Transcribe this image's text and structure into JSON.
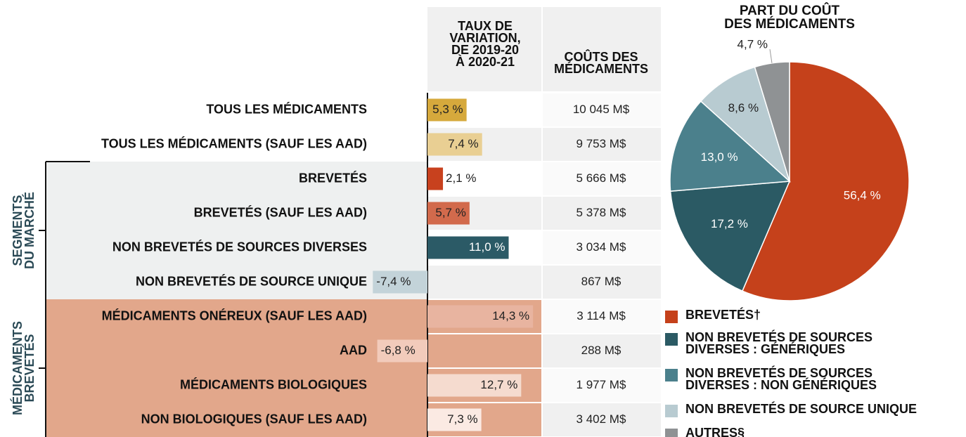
{
  "chart_data": [
    {
      "type": "bar",
      "rate_header": [
        "TAUX DE",
        "VARIATION,",
        "DE 2019-20",
        "À 2020-21"
      ],
      "cost_header": [
        "COÛTS DES",
        "MÉDICAMENTS"
      ],
      "categories": [
        "TOUS LES MÉDICAMENTS",
        "TOUS LES MÉDICAMENTS (SAUF LES AAD)",
        "BREVETÉS",
        "BREVETÉS (SAUF LES AAD)",
        "NON BREVETÉS DE SOURCES DIVERSES",
        "NON BREVETÉS DE SOURCE UNIQUE",
        "MÉDICAMENTS ONÉREUX (SAUF LES AAD)",
        "AAD",
        "MÉDICAMENTS BIOLOGIQUES",
        "NON BIOLOGIQUES (SAUF LES AAD)"
      ],
      "values": [
        5.3,
        7.4,
        2.1,
        5.7,
        11.0,
        -7.4,
        14.3,
        -6.8,
        12.7,
        7.3
      ],
      "value_labels": [
        "5,3 %",
        "7,4 %",
        "2,1 %",
        "5,7 %",
        "11,0 %",
        "-7,4 %",
        "14,3 %",
        "-6,8 %",
        "12,7 %",
        "7,3 %"
      ],
      "colors": [
        "#d6a93c",
        "#e9cf93",
        "#c8411e",
        "#d26a4c",
        "#2b5a66",
        "#c3d3d9",
        "#e8b4a0",
        "#f2cbbb",
        "#f5dbcf",
        "#fbeae3"
      ],
      "costs": [
        "10 045 M$",
        "9 753 M$",
        "5 666 M$",
        "5 378 M$",
        "3 034 M$",
        "867 M$",
        "3 114 M$",
        "288 M$",
        "1 977 M$",
        "3 402 M$"
      ],
      "xlim": [
        -8,
        16
      ],
      "groups": [
        [
          "SEGMENTS",
          "DU MARCHÉ"
        ],
        [
          "MÉDICAMENTS",
          "BREVETÉS"
        ]
      ]
    },
    {
      "type": "pie",
      "title": [
        "PART DU COÛT",
        "DES MÉDICAMENTS"
      ],
      "categories": [
        "BREVETÉS†",
        "NON BREVETÉS DE SOURCES DIVERSES : GÉNÉRIQUES",
        "NON BREVETÉS DE SOURCES DIVERSES : NON GÉNÉRIQUES",
        "NON BREVETÉS DE SOURCE UNIQUE",
        "AUTRES§"
      ],
      "values": [
        56.4,
        17.2,
        13.0,
        8.6,
        4.7
      ],
      "value_labels": [
        "56,4 %",
        "17,2 %",
        "13,0 %",
        "8,6 %",
        "4,7 %"
      ],
      "colors": [
        "#c5411b",
        "#2b5a64",
        "#4b808c",
        "#b8cbd1",
        "#8f9294"
      ]
    }
  ]
}
